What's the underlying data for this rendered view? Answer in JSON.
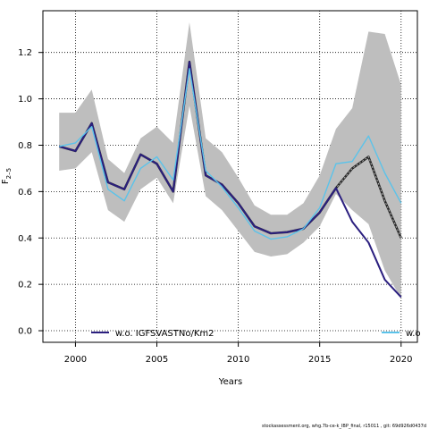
{
  "chart_data": {
    "type": "line",
    "title": "",
    "xlabel": "Years",
    "ylabel": "F",
    "ylabel_sub": "2–5",
    "xlim": [
      1998,
      2021
    ],
    "ylim": [
      -0.05,
      1.38
    ],
    "xticks": [
      2000,
      2005,
      2010,
      2015,
      2020
    ],
    "yticks": [
      0.0,
      0.2,
      0.4,
      0.6,
      0.8,
      1.0,
      1.2
    ],
    "ytick_labels": [
      "0.0",
      "0.2",
      "0.4",
      "0.6",
      "0.8",
      "1.0",
      "1.2"
    ],
    "grid": true,
    "legend_position": "bottom",
    "x": [
      1999,
      2000,
      2001,
      2002,
      2003,
      2004,
      2005,
      2006,
      2007,
      2008,
      2009,
      2010,
      2011,
      2012,
      2013,
      2014,
      2015,
      2016,
      2017,
      2018,
      2019,
      2020
    ],
    "band": {
      "upper": [
        0.94,
        0.94,
        1.04,
        0.74,
        0.68,
        0.83,
        0.88,
        0.81,
        1.33,
        0.83,
        0.77,
        0.66,
        0.54,
        0.5,
        0.5,
        0.55,
        0.67,
        0.87,
        0.96,
        1.29,
        1.28,
        1.06
      ],
      "lower": [
        0.69,
        0.7,
        0.77,
        0.52,
        0.47,
        0.61,
        0.66,
        0.55,
        0.97,
        0.58,
        0.52,
        0.43,
        0.34,
        0.32,
        0.33,
        0.38,
        0.45,
        0.59,
        0.52,
        0.46,
        0.26,
        0.14
      ],
      "color": "#bebebe"
    },
    "series": [
      {
        "name": "",
        "color": "#262626",
        "style": "dashed",
        "values": [
          0.795,
          0.775,
          0.895,
          0.64,
          0.61,
          0.76,
          0.72,
          0.6,
          1.16,
          0.67,
          0.63,
          0.55,
          0.45,
          0.42,
          0.425,
          0.44,
          0.51,
          0.615,
          0.7,
          0.75,
          0.56,
          0.4
        ]
      },
      {
        "name": "w.o. IGFSVASTNo/Km2",
        "color": "#2b1f7f",
        "style": "solid",
        "values": [
          0.795,
          0.775,
          0.895,
          0.64,
          0.61,
          0.76,
          0.72,
          0.6,
          1.16,
          0.67,
          0.63,
          0.55,
          0.45,
          0.42,
          0.425,
          0.44,
          0.51,
          0.615,
          0.47,
          0.38,
          0.22,
          0.145
        ]
      },
      {
        "name": "w.o",
        "color": "#5bc3ea",
        "style": "solid",
        "values": [
          0.795,
          0.81,
          0.88,
          0.61,
          0.56,
          0.7,
          0.75,
          0.65,
          1.13,
          0.69,
          0.62,
          0.53,
          0.43,
          0.395,
          0.405,
          0.44,
          0.53,
          0.72,
          0.73,
          0.84,
          0.68,
          0.55
        ]
      }
    ]
  },
  "footer": "stockassessment.org, whg.7b-ce-k_IBP_final, r15011 , git: 69d926d0437d"
}
